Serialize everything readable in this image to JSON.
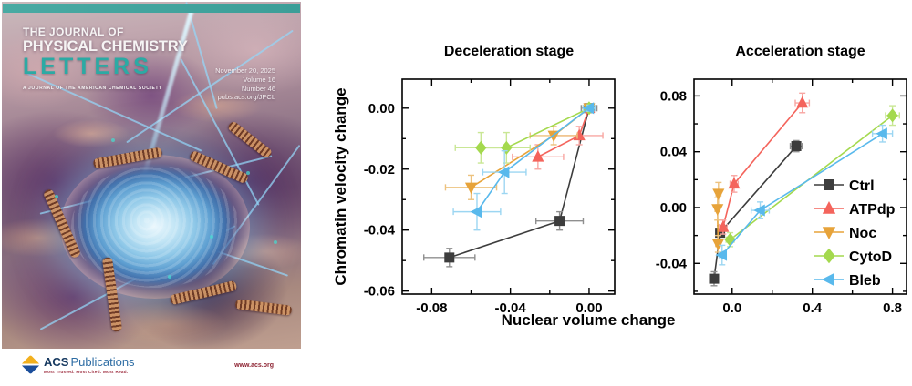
{
  "cover": {
    "title_line1": "THE JOURNAL OF",
    "title_line2": "PHYSICAL CHEMISTRY",
    "title_line3": "LETTERS",
    "subtitle": "A JOURNAL OF THE AMERICAN CHEMICAL SOCIETY",
    "issue_date": "November 20, 2025",
    "volume": "Volume 16",
    "number": "Number 46",
    "url": "pubs.acs.org/JPCL",
    "publisher": {
      "acs": "ACS",
      "publications": "Publications",
      "tagline": "Most Trusted. Most Cited. Most Read.",
      "website": "www.acs.org"
    },
    "colors": {
      "teal_bar": "#3fa49e",
      "letters_teal": "#2caaa4",
      "acs_navy": "#14375e",
      "acs_blue": "#2e6da4",
      "maroon": "#8d2332"
    }
  },
  "axis_labels": {
    "x": "Nuclear volume change",
    "y": "Chromatin velocity change"
  },
  "chart_data": [
    {
      "type": "scatter",
      "title": "Deceleration stage",
      "xlim": [
        -0.095,
        0.013
      ],
      "ylim": [
        -0.061,
        0.0095
      ],
      "x_ticks": [
        {
          "v": -0.08,
          "label": "-0.08"
        },
        {
          "v": -0.04,
          "label": "-0.04"
        },
        {
          "v": 0.0,
          "label": "0.00"
        }
      ],
      "x_minor": [
        -0.06,
        -0.02
      ],
      "y_ticks": [
        {
          "v": 0.0,
          "label": "0.00"
        },
        {
          "v": -0.02,
          "label": "-0.02"
        },
        {
          "v": -0.04,
          "label": "-0.04"
        },
        {
          "v": -0.06,
          "label": "-0.06"
        }
      ],
      "y_minor": [
        -0.01,
        -0.03,
        -0.05
      ],
      "grid": false,
      "legend": {
        "show": false
      },
      "series": [
        {
          "name": "Ctrl",
          "color": "#3d3d3d",
          "err_color": "#8f8f8f",
          "marker": "square",
          "points": [
            {
              "x": -0.071,
              "y": -0.049,
              "xerr": 0.013,
              "yerr": 0.003
            },
            {
              "x": -0.015,
              "y": -0.037,
              "xerr": 0.012,
              "yerr": 0.003
            },
            {
              "x": 0.0,
              "y": 0.0,
              "xerr": 0.004,
              "yerr": 0.001
            }
          ]
        },
        {
          "name": "ATPdp",
          "color": "#f4645c",
          "err_color": "#f8a6a2",
          "marker": "triangle-up",
          "points": [
            {
              "x": -0.026,
              "y": -0.016,
              "xerr": 0.013,
              "yerr": 0.004
            },
            {
              "x": -0.005,
              "y": -0.009,
              "xerr": 0.012,
              "yerr": 0.003
            },
            {
              "x": 0.0,
              "y": 0.0,
              "xerr": 0.003,
              "yerr": 0.001
            }
          ]
        },
        {
          "name": "Noc",
          "color": "#e7a33a",
          "err_color": "#edc27e",
          "marker": "triangle-down",
          "points": [
            {
              "x": -0.06,
              "y": -0.026,
              "xerr": 0.013,
              "yerr": 0.004
            },
            {
              "x": -0.018,
              "y": -0.009,
              "xerr": 0.012,
              "yerr": 0.003
            },
            {
              "x": 0.0,
              "y": 0.0,
              "xerr": 0.003,
              "yerr": 0.001
            }
          ]
        },
        {
          "name": "CytoD",
          "color": "#a4d94e",
          "err_color": "#c9e795",
          "marker": "diamond",
          "points": [
            {
              "x": -0.055,
              "y": -0.013,
              "xerr": 0.013,
              "yerr": 0.005
            },
            {
              "x": -0.042,
              "y": -0.013,
              "xerr": 0.012,
              "yerr": 0.005
            },
            {
              "x": 0.0,
              "y": 0.0,
              "xerr": 0.003,
              "yerr": 0.001
            }
          ]
        },
        {
          "name": "Bleb",
          "color": "#59b9ec",
          "err_color": "#9cd6f2",
          "marker": "triangle-left",
          "points": [
            {
              "x": -0.057,
              "y": -0.034,
              "xerr": 0.012,
              "yerr": 0.006
            },
            {
              "x": -0.043,
              "y": -0.021,
              "xerr": 0.011,
              "yerr": 0.007
            },
            {
              "x": 0.0,
              "y": 0.0,
              "xerr": 0.003,
              "yerr": 0.001
            }
          ]
        }
      ]
    },
    {
      "type": "scatter",
      "title": "Acceleration stage",
      "xlim": [
        -0.19,
        0.87
      ],
      "ylim": [
        -0.062,
        0.092
      ],
      "x_ticks": [
        {
          "v": 0.0,
          "label": "0.0"
        },
        {
          "v": 0.4,
          "label": "0.4"
        },
        {
          "v": 0.8,
          "label": "0.8"
        }
      ],
      "x_minor": [
        0.2,
        0.6
      ],
      "y_ticks": [
        {
          "v": 0.08,
          "label": "0.08"
        },
        {
          "v": 0.04,
          "label": "0.04"
        },
        {
          "v": 0.0,
          "label": "0.00"
        },
        {
          "v": -0.04,
          "label": "-0.04"
        }
      ],
      "y_minor": [
        0.06,
        0.02,
        -0.02,
        -0.06
      ],
      "grid": false,
      "legend": {
        "show": true,
        "position": "inside-right"
      },
      "series": [
        {
          "name": "Ctrl",
          "color": "#3d3d3d",
          "err_color": "#8f8f8f",
          "marker": "square",
          "points": [
            {
              "x": -0.09,
              "y": -0.051,
              "xerr": 0.015,
              "yerr": 0.005
            },
            {
              "x": -0.06,
              "y": -0.018,
              "xerr": 0.01,
              "yerr": 0.005
            },
            {
              "x": 0.32,
              "y": 0.044,
              "xerr": 0.03,
              "yerr": 0.004
            }
          ]
        },
        {
          "name": "ATPdp",
          "color": "#f4645c",
          "err_color": "#f8a6a2",
          "marker": "triangle-up",
          "points": [
            {
              "x": -0.045,
              "y": -0.014,
              "xerr": 0.02,
              "yerr": 0.005
            },
            {
              "x": 0.01,
              "y": 0.017,
              "xerr": 0.02,
              "yerr": 0.006
            },
            {
              "x": 0.35,
              "y": 0.075,
              "xerr": 0.035,
              "yerr": 0.007
            }
          ]
        },
        {
          "name": "Noc",
          "color": "#e7a33a",
          "err_color": "#edc27e",
          "marker": "triangle-down",
          "points": [
            {
              "x": -0.07,
              "y": -0.026,
              "xerr": 0.012,
              "yerr": 0.006
            },
            {
              "x": -0.073,
              "y": -0.001,
              "xerr": 0.012,
              "yerr": 0.008
            },
            {
              "x": -0.068,
              "y": 0.01,
              "xerr": 0.012,
              "yerr": 0.008
            }
          ]
        },
        {
          "name": "CytoD",
          "color": "#a4d94e",
          "err_color": "#c9e795",
          "marker": "diamond",
          "points": [
            {
              "x": -0.01,
              "y": -0.023,
              "xerr": 0.02,
              "yerr": 0.005
            },
            {
              "x": 0.8,
              "y": 0.066,
              "xerr": 0.035,
              "yerr": 0.007
            }
          ]
        },
        {
          "name": "Bleb",
          "color": "#59b9ec",
          "err_color": "#9cd6f2",
          "marker": "triangle-left",
          "points": [
            {
              "x": -0.05,
              "y": -0.034,
              "xerr": 0.015,
              "yerr": 0.007
            },
            {
              "x": 0.14,
              "y": -0.002,
              "xerr": 0.045,
              "yerr": 0.006
            },
            {
              "x": 0.75,
              "y": 0.053,
              "xerr": 0.05,
              "yerr": 0.006
            }
          ]
        }
      ]
    }
  ]
}
